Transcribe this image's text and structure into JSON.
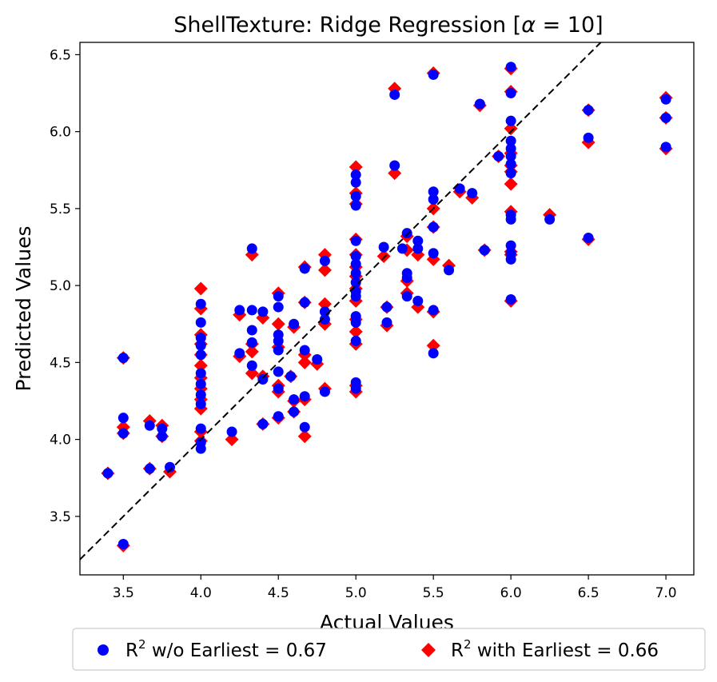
{
  "chart_data": {
    "type": "scatter",
    "title_prefix": "ShellTexture: Ridge Regression [",
    "title_alpha": "α",
    "title_suffix": " = 10]",
    "xlabel": "Actual Values",
    "ylabel": "Predicted Values",
    "xlim": [
      3.22,
      7.18
    ],
    "ylim": [
      3.12,
      6.58
    ],
    "x_ticks": [
      3.5,
      4.0,
      4.5,
      5.0,
      5.5,
      6.0,
      6.5,
      7.0
    ],
    "y_ticks": [
      3.5,
      4.0,
      4.5,
      5.0,
      5.5,
      6.0,
      6.5
    ],
    "reference_line": {
      "style": "dashed",
      "color": "#000000",
      "from": [
        3.22,
        3.22
      ],
      "to": [
        6.58,
        6.58
      ]
    },
    "legend": {
      "placement": "bottom-center",
      "items": [
        {
          "marker": "circle",
          "color": "#0000ff",
          "prefix": "R",
          "superscript": "2",
          "suffix": " w/o Earliest = 0.67"
        },
        {
          "marker": "diamond",
          "color": "#ff0000",
          "prefix": "R",
          "superscript": "2",
          "suffix": " with Earliest = 0.66"
        }
      ]
    },
    "series": [
      {
        "marker": "diamond",
        "color": "#ff0000",
        "points": [
          [
            3.4,
            3.78
          ],
          [
            3.5,
            4.53
          ],
          [
            3.5,
            4.08
          ],
          [
            3.5,
            4.04
          ],
          [
            3.5,
            3.31
          ],
          [
            3.67,
            4.12
          ],
          [
            3.67,
            3.81
          ],
          [
            3.75,
            4.09
          ],
          [
            3.75,
            4.02
          ],
          [
            3.8,
            3.79
          ],
          [
            4.0,
            4.98
          ],
          [
            4.0,
            4.85
          ],
          [
            4.0,
            4.68
          ],
          [
            4.0,
            4.62
          ],
          [
            4.0,
            4.55
          ],
          [
            4.0,
            4.48
          ],
          [
            4.0,
            4.4
          ],
          [
            4.0,
            4.33
          ],
          [
            4.0,
            4.26
          ],
          [
            4.0,
            4.2
          ],
          [
            4.0,
            4.05
          ],
          [
            4.0,
            3.99
          ],
          [
            4.2,
            4.0
          ],
          [
            4.25,
            4.81
          ],
          [
            4.25,
            4.54
          ],
          [
            4.33,
            5.2
          ],
          [
            4.33,
            4.62
          ],
          [
            4.33,
            4.57
          ],
          [
            4.33,
            4.43
          ],
          [
            4.4,
            4.79
          ],
          [
            4.4,
            4.41
          ],
          [
            4.4,
            4.1
          ],
          [
            4.5,
            4.95
          ],
          [
            4.5,
            4.75
          ],
          [
            4.5,
            4.6
          ],
          [
            4.5,
            4.35
          ],
          [
            4.5,
            4.31
          ],
          [
            4.5,
            4.14
          ],
          [
            4.58,
            4.41
          ],
          [
            4.6,
            4.73
          ],
          [
            4.6,
            4.25
          ],
          [
            4.6,
            4.18
          ],
          [
            4.67,
            5.12
          ],
          [
            4.67,
            4.89
          ],
          [
            4.67,
            4.55
          ],
          [
            4.67,
            4.5
          ],
          [
            4.67,
            4.26
          ],
          [
            4.67,
            4.02
          ],
          [
            4.75,
            4.49
          ],
          [
            4.8,
            5.2
          ],
          [
            4.8,
            5.1
          ],
          [
            4.8,
            4.88
          ],
          [
            4.8,
            4.75
          ],
          [
            4.8,
            4.33
          ],
          [
            5.0,
            5.77
          ],
          [
            5.0,
            5.6
          ],
          [
            5.0,
            5.53
          ],
          [
            5.0,
            5.3
          ],
          [
            5.0,
            5.2
          ],
          [
            5.0,
            5.12
          ],
          [
            5.0,
            5.06
          ],
          [
            5.0,
            4.98
          ],
          [
            5.0,
            4.9
          ],
          [
            5.0,
            4.78
          ],
          [
            5.0,
            4.7
          ],
          [
            5.0,
            4.62
          ],
          [
            5.0,
            4.35
          ],
          [
            5.0,
            4.31
          ],
          [
            5.18,
            5.19
          ],
          [
            5.2,
            4.86
          ],
          [
            5.2,
            4.74
          ],
          [
            5.25,
            6.28
          ],
          [
            5.25,
            5.73
          ],
          [
            5.33,
            5.32
          ],
          [
            5.33,
            5.23
          ],
          [
            5.33,
            5.03
          ],
          [
            5.33,
            4.95
          ],
          [
            5.4,
            5.2
          ],
          [
            5.4,
            4.86
          ],
          [
            5.5,
            6.38
          ],
          [
            5.5,
            5.5
          ],
          [
            5.5,
            5.38
          ],
          [
            5.5,
            5.17
          ],
          [
            5.5,
            4.83
          ],
          [
            5.5,
            4.61
          ],
          [
            5.6,
            5.13
          ],
          [
            5.67,
            5.61
          ],
          [
            5.75,
            5.57
          ],
          [
            5.8,
            6.17
          ],
          [
            5.83,
            5.23
          ],
          [
            5.92,
            5.84
          ],
          [
            6.0,
            6.41
          ],
          [
            6.0,
            6.26
          ],
          [
            6.0,
            6.02
          ],
          [
            6.0,
            5.86
          ],
          [
            6.0,
            5.78
          ],
          [
            6.0,
            5.74
          ],
          [
            6.0,
            5.66
          ],
          [
            6.0,
            5.48
          ],
          [
            6.0,
            5.22
          ],
          [
            6.0,
            5.2
          ],
          [
            6.0,
            4.9
          ],
          [
            6.25,
            5.46
          ],
          [
            6.5,
            6.14
          ],
          [
            6.5,
            5.93
          ],
          [
            6.5,
            5.3
          ],
          [
            7.0,
            6.22
          ],
          [
            7.0,
            6.09
          ],
          [
            7.0,
            5.89
          ]
        ]
      },
      {
        "marker": "circle",
        "color": "#0000ff",
        "points": [
          [
            3.4,
            3.78
          ],
          [
            3.5,
            4.53
          ],
          [
            3.5,
            4.14
          ],
          [
            3.5,
            4.04
          ],
          [
            3.5,
            3.32
          ],
          [
            3.67,
            4.09
          ],
          [
            3.67,
            3.81
          ],
          [
            3.75,
            4.07
          ],
          [
            3.75,
            4.02
          ],
          [
            3.8,
            3.82
          ],
          [
            4.0,
            4.88
          ],
          [
            4.0,
            4.76
          ],
          [
            4.0,
            4.66
          ],
          [
            4.0,
            4.61
          ],
          [
            4.0,
            4.55
          ],
          [
            4.0,
            4.43
          ],
          [
            4.0,
            4.36
          ],
          [
            4.0,
            4.29
          ],
          [
            4.0,
            4.23
          ],
          [
            4.0,
            4.07
          ],
          [
            4.0,
            3.98
          ],
          [
            4.0,
            3.94
          ],
          [
            4.2,
            4.05
          ],
          [
            4.25,
            4.84
          ],
          [
            4.25,
            4.56
          ],
          [
            4.33,
            5.24
          ],
          [
            4.33,
            4.84
          ],
          [
            4.33,
            4.71
          ],
          [
            4.33,
            4.63
          ],
          [
            4.33,
            4.48
          ],
          [
            4.4,
            4.83
          ],
          [
            4.4,
            4.39
          ],
          [
            4.4,
            4.1
          ],
          [
            4.5,
            4.93
          ],
          [
            4.5,
            4.86
          ],
          [
            4.5,
            4.68
          ],
          [
            4.5,
            4.64
          ],
          [
            4.5,
            4.58
          ],
          [
            4.5,
            4.44
          ],
          [
            4.5,
            4.33
          ],
          [
            4.5,
            4.15
          ],
          [
            4.58,
            4.41
          ],
          [
            4.6,
            4.75
          ],
          [
            4.6,
            4.26
          ],
          [
            4.6,
            4.18
          ],
          [
            4.67,
            5.11
          ],
          [
            4.67,
            4.89
          ],
          [
            4.67,
            4.58
          ],
          [
            4.67,
            4.28
          ],
          [
            4.67,
            4.08
          ],
          [
            4.75,
            4.52
          ],
          [
            4.8,
            5.16
          ],
          [
            4.8,
            4.83
          ],
          [
            4.8,
            4.78
          ],
          [
            4.8,
            4.31
          ],
          [
            5.0,
            5.72
          ],
          [
            5.0,
            5.67
          ],
          [
            5.0,
            5.58
          ],
          [
            5.0,
            5.52
          ],
          [
            5.0,
            5.29
          ],
          [
            5.0,
            5.19
          ],
          [
            5.0,
            5.14
          ],
          [
            5.0,
            5.08
          ],
          [
            5.0,
            5.02
          ],
          [
            5.0,
            4.96
          ],
          [
            5.0,
            4.93
          ],
          [
            5.0,
            4.8
          ],
          [
            5.0,
            4.76
          ],
          [
            5.0,
            4.64
          ],
          [
            5.0,
            4.37
          ],
          [
            5.0,
            4.33
          ],
          [
            5.18,
            5.25
          ],
          [
            5.2,
            4.86
          ],
          [
            5.2,
            4.76
          ],
          [
            5.25,
            6.24
          ],
          [
            5.25,
            5.78
          ],
          [
            5.3,
            5.24
          ],
          [
            5.33,
            5.34
          ],
          [
            5.33,
            5.08
          ],
          [
            5.33,
            5.05
          ],
          [
            5.33,
            4.93
          ],
          [
            5.4,
            5.29
          ],
          [
            5.4,
            5.24
          ],
          [
            5.4,
            4.9
          ],
          [
            5.5,
            6.37
          ],
          [
            5.5,
            5.61
          ],
          [
            5.5,
            5.56
          ],
          [
            5.5,
            5.38
          ],
          [
            5.5,
            5.21
          ],
          [
            5.5,
            4.84
          ],
          [
            5.5,
            4.56
          ],
          [
            5.6,
            5.1
          ],
          [
            5.67,
            5.63
          ],
          [
            5.75,
            5.6
          ],
          [
            5.8,
            6.18
          ],
          [
            5.83,
            5.23
          ],
          [
            5.92,
            5.84
          ],
          [
            6.0,
            6.42
          ],
          [
            6.0,
            6.25
          ],
          [
            6.0,
            6.07
          ],
          [
            6.0,
            5.94
          ],
          [
            6.0,
            5.89
          ],
          [
            6.0,
            5.84
          ],
          [
            6.0,
            5.79
          ],
          [
            6.0,
            5.73
          ],
          [
            6.0,
            5.46
          ],
          [
            6.0,
            5.43
          ],
          [
            6.0,
            5.26
          ],
          [
            6.0,
            5.21
          ],
          [
            6.0,
            5.17
          ],
          [
            6.0,
            4.91
          ],
          [
            6.25,
            5.43
          ],
          [
            6.5,
            6.14
          ],
          [
            6.5,
            5.96
          ],
          [
            6.5,
            5.31
          ],
          [
            7.0,
            6.21
          ],
          [
            7.0,
            6.09
          ],
          [
            7.0,
            5.9
          ]
        ]
      }
    ]
  }
}
